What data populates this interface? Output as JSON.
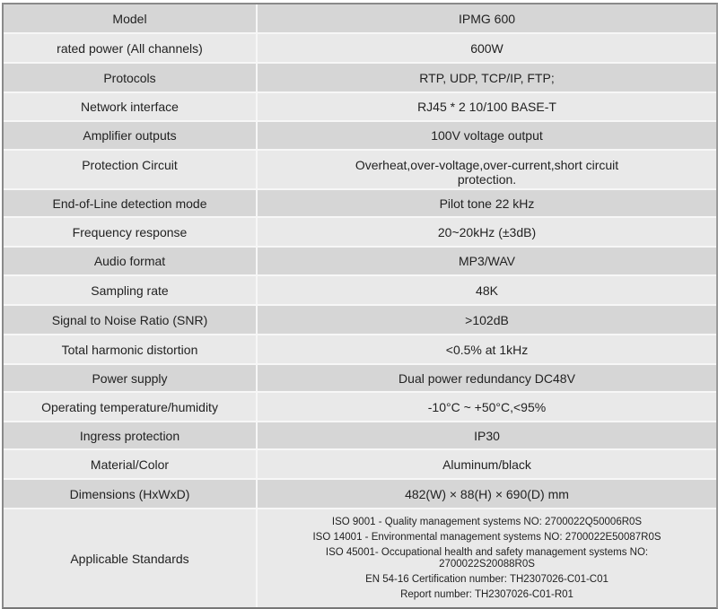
{
  "rows": [
    {
      "label": "Model",
      "value": "IPMG 600"
    },
    {
      "label": "rated power (All channels)",
      "value": "600W"
    },
    {
      "label": "Protocols",
      "value": "RTP, UDP, TCP/IP, FTP;"
    },
    {
      "label": "Network interface",
      "value": "RJ45 * 2  10/100 BASE-T"
    },
    {
      "label": "Amplifier outputs",
      "value": "100V voltage output"
    },
    {
      "label": "Protection Circuit",
      "value": "Overheat,over-voltage,over-current,short circuit protection."
    },
    {
      "label": "End-of-Line detection mode",
      "value": "Pilot tone 22 kHz"
    },
    {
      "label": "Frequency response",
      "value": "20~20kHz (±3dB)"
    },
    {
      "label": "Audio format",
      "value": "MP3/WAV"
    },
    {
      "label": "Sampling rate",
      "value": "48K"
    },
    {
      "label": "Signal to Noise Ratio (SNR)",
      "value": ">102dB"
    },
    {
      "label": "Total harmonic distortion",
      "value": "<0.5% at 1kHz"
    },
    {
      "label": "Power supply",
      "value": "Dual power redundancy DC48V"
    },
    {
      "label": "Operating temperature/humidity",
      "value": "-10°C ~ +50°C,<95%"
    },
    {
      "label": "Ingress protection",
      "value": "IP30"
    },
    {
      "label": "Material/Color",
      "value": "Aluminum/black"
    },
    {
      "label": "Dimensions (HxWxD)",
      "value": "482(W) × 88(H) × 690(D) mm"
    }
  ],
  "standards": {
    "label": "Applicable Standards",
    "lines": [
      "ISO 9001 - Quality management systems NO: 2700022Q50006R0S",
      "ISO 14001 - Environmental management systems NO: 2700022E50087R0S",
      "ISO 45001- Occupational health and safety management systems NO: 2700022S20088R0S",
      "EN 54-16 Certification number: TH2307026-C01-C01",
      "Report number: TH2307026-C01-R01"
    ]
  }
}
